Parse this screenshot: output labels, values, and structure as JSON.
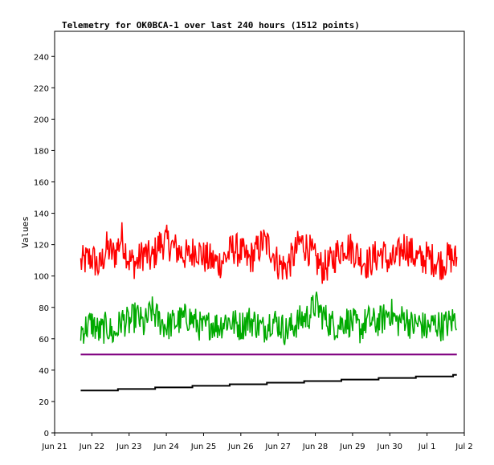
{
  "chart_data": {
    "type": "line",
    "title": "Telemetry for OK0BCA-1 over last 240 hours (1512 points)",
    "xlabel": "",
    "ylabel": "Values",
    "xlim": [
      0,
      11
    ],
    "ylim": [
      0,
      256
    ],
    "x_tick_labels": [
      "Jun 21",
      "Jun 22",
      "Jun 23",
      "Jun 24",
      "Jun 25",
      "Jun 26",
      "Jun 27",
      "Jun 28",
      "Jun 29",
      "Jun 30",
      "Jul 1",
      "Jul 2"
    ],
    "y_ticks": [
      0,
      20,
      40,
      60,
      80,
      100,
      120,
      140,
      160,
      180,
      200,
      220,
      240
    ],
    "grid": false,
    "series": [
      {
        "color": "#ff0000",
        "style": "noisy",
        "amplitude": 11,
        "x": [
          0.7,
          1.0,
          1.2,
          1.4,
          1.6,
          1.8,
          2.0,
          2.2,
          2.4,
          2.6,
          2.8,
          3.0,
          3.2,
          3.4,
          3.6,
          3.8,
          4.0,
          4.2,
          4.4,
          4.6,
          4.8,
          5.0,
          5.2,
          5.4,
          5.6,
          5.8,
          6.0,
          6.2,
          6.4,
          6.6,
          6.8,
          7.0,
          7.2,
          7.4,
          7.6,
          7.8,
          8.0,
          8.2,
          8.4,
          8.6,
          8.8,
          9.0,
          9.2,
          9.4,
          9.6,
          9.8,
          10.0,
          10.2,
          10.4,
          10.6,
          10.8
        ],
        "values": [
          108,
          112,
          105,
          118,
          113,
          125,
          110,
          108,
          115,
          110,
          120,
          122,
          118,
          115,
          112,
          118,
          112,
          110,
          108,
          112,
          118,
          115,
          110,
          115,
          122,
          118,
          108,
          105,
          112,
          122,
          118,
          110,
          105,
          108,
          115,
          120,
          117,
          112,
          108,
          112,
          115,
          108,
          112,
          120,
          114,
          110,
          112,
          110,
          108,
          112,
          110
        ]
      },
      {
        "color": "#00aa00",
        "style": "noisy",
        "amplitude": 10,
        "x": [
          0.7,
          1.0,
          1.2,
          1.4,
          1.6,
          1.8,
          2.0,
          2.2,
          2.4,
          2.6,
          2.8,
          3.0,
          3.2,
          3.4,
          3.6,
          3.8,
          4.0,
          4.2,
          4.4,
          4.6,
          4.8,
          5.0,
          5.2,
          5.4,
          5.6,
          5.8,
          6.0,
          6.2,
          6.4,
          6.6,
          6.8,
          7.0,
          7.2,
          7.4,
          7.6,
          7.8,
          8.0,
          8.2,
          8.4,
          8.6,
          8.8,
          9.0,
          9.2,
          9.4,
          9.6,
          9.8,
          10.0,
          10.2,
          10.4,
          10.6,
          10.8
        ],
        "values": [
          65,
          70,
          64,
          68,
          62,
          72,
          70,
          75,
          68,
          78,
          72,
          68,
          70,
          72,
          74,
          70,
          66,
          70,
          68,
          72,
          70,
          68,
          72,
          70,
          66,
          72,
          70,
          65,
          68,
          72,
          74,
          82,
          75,
          70,
          68,
          72,
          70,
          66,
          72,
          70,
          72,
          78,
          70,
          74,
          68,
          70,
          66,
          70,
          68,
          70,
          74
        ]
      },
      {
        "color": "#800080",
        "style": "flat",
        "x": [
          0.7,
          10.8
        ],
        "values": [
          50,
          50
        ]
      },
      {
        "color": "#000000",
        "style": "step",
        "x": [
          0.7,
          1.7,
          2.7,
          3.7,
          4.7,
          5.7,
          6.7,
          7.7,
          8.7,
          9.7,
          10.7,
          10.8
        ],
        "values": [
          27,
          28,
          29,
          30,
          31,
          32,
          33,
          34,
          35,
          36,
          37,
          37
        ]
      }
    ]
  }
}
